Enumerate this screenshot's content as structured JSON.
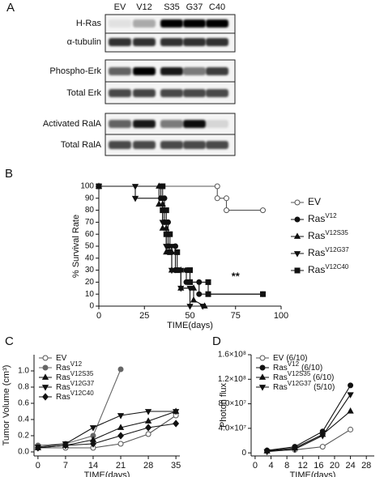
{
  "blot": {
    "panel": "A",
    "lanes": [
      "EV",
      "V12",
      "S35",
      "G37",
      "C40"
    ],
    "rows": [
      "H-Ras",
      "α-tubulin",
      "Phospho-Erk",
      "Total Erk",
      "Activated RalA",
      "Total RalA"
    ]
  },
  "chart_data": [
    {
      "type": "line",
      "panel": "B",
      "x_label": "TIME(days)",
      "y_label": "% Survival Rate",
      "xlim": [
        0,
        100
      ],
      "xticks": [
        0,
        25,
        50,
        75,
        100
      ],
      "ylim": [
        0,
        100
      ],
      "yticks": [
        0,
        10,
        20,
        30,
        40,
        50,
        60,
        70,
        80,
        90,
        100
      ],
      "legend": "right",
      "annotation": "**",
      "series": [
        {
          "name": "EV",
          "color": "#555555",
          "marker": "circle-open",
          "x": [
            0,
            65,
            65,
            70,
            70,
            90
          ],
          "values": [
            100,
            100,
            90,
            90,
            80,
            80
          ]
        },
        {
          "name": "Ras",
          "name_sup": "V12",
          "color": "#111111",
          "marker": "circle",
          "x": [
            0,
            34,
            34,
            36,
            36,
            38,
            38,
            42,
            42,
            48,
            48,
            55,
            55,
            90
          ],
          "values": [
            100,
            100,
            90,
            90,
            70,
            70,
            50,
            50,
            30,
            30,
            20,
            20,
            10,
            10
          ]
        },
        {
          "name": "Ras",
          "name_sup": "V12S35",
          "color": "#111111",
          "marker": "triangle-up",
          "x": [
            0,
            33,
            33,
            35,
            35,
            37,
            37,
            40,
            40,
            45,
            45,
            52,
            52,
            58
          ],
          "values": [
            100,
            100,
            85,
            85,
            65,
            65,
            45,
            45,
            30,
            30,
            15,
            15,
            5,
            0
          ]
        },
        {
          "name": "Ras",
          "name_sup": "V12G37",
          "color": "#111111",
          "marker": "triangle-down",
          "x": [
            0,
            20,
            20,
            35,
            35,
            37,
            37,
            40,
            40,
            45,
            45,
            50,
            50,
            57
          ],
          "values": [
            100,
            100,
            90,
            90,
            70,
            70,
            50,
            50,
            30,
            30,
            15,
            15,
            0,
            0
          ]
        },
        {
          "name": "Ras",
          "name_sup": "V12C40",
          "color": "#111111",
          "marker": "square",
          "x": [
            0,
            35,
            35,
            37,
            37,
            39,
            39,
            43,
            43,
            50,
            50,
            60,
            60,
            90
          ],
          "values": [
            100,
            100,
            80,
            80,
            60,
            60,
            45,
            45,
            30,
            30,
            20,
            20,
            10,
            10
          ]
        }
      ]
    },
    {
      "type": "line",
      "panel": "C",
      "x_label": "TIME(days)",
      "y_label": "Tumor Volume (cm³)",
      "x": [
        0,
        7,
        14,
        21,
        28,
        35
      ],
      "xlim": [
        -1,
        36
      ],
      "xticks": [
        0,
        7,
        14,
        21,
        28,
        35
      ],
      "ylim": [
        -0.05,
        1.2
      ],
      "yticks": [
        {
          "value": 0,
          "label": "0.0"
        },
        0.2,
        0.4,
        0.6,
        0.8,
        {
          "value": 1,
          "label": "1.0"
        }
      ],
      "legend": "upper left",
      "series": [
        {
          "name": "EV",
          "color": "#555555",
          "marker": "circle-open",
          "values": [
            0.05,
            0.05,
            0.05,
            0.1,
            0.22,
            0.45
          ]
        },
        {
          "name": "Ras",
          "name_sup": "V12",
          "color": "#666666",
          "marker": "circle",
          "values": [
            0.08,
            0.1,
            0.2,
            1.02,
            null,
            null
          ]
        },
        {
          "name": "Ras",
          "name_sup": "V12S35",
          "color": "#111111",
          "marker": "triangle-up",
          "values": [
            0.05,
            0.08,
            0.15,
            0.3,
            0.38,
            0.5
          ]
        },
        {
          "name": "Ras",
          "name_sup": "V12G37",
          "color": "#111111",
          "marker": "triangle-down",
          "values": [
            0.06,
            0.1,
            0.3,
            0.45,
            0.5,
            0.5
          ]
        },
        {
          "name": "Ras",
          "name_sup": "V12C40",
          "color": "#111111",
          "marker": "diamond",
          "values": [
            0.05,
            0.08,
            0.1,
            0.2,
            0.3,
            0.35
          ]
        }
      ]
    },
    {
      "type": "line",
      "panel": "D",
      "x_label": "TIME(days)",
      "y_label": "Photon flux",
      "x": [
        3,
        10,
        17,
        24
      ],
      "xlim": [
        -1,
        30
      ],
      "xticks": [
        0,
        4,
        8,
        12,
        16,
        20,
        24,
        28
      ],
      "ylim": [
        -5000000,
        160000000
      ],
      "yticks": [
        0,
        {
          "value": 40000000,
          "label": "4.0×10⁷"
        },
        {
          "value": 80000000,
          "label": "8.0×10⁷"
        },
        {
          "value": 120000000,
          "label": "1.2×10⁸"
        },
        {
          "value": 160000000,
          "label": "1.6×10⁸"
        }
      ],
      "legend": "upper left",
      "series": [
        {
          "name": "EV",
          "name_suffix": "(6/10)",
          "color": "#555555",
          "marker": "circle-open",
          "values": [
            3000000,
            5000000,
            10000000,
            38000000
          ]
        },
        {
          "name": "Ras",
          "name_sup": "V12",
          "name_suffix": "(6/10)",
          "color": "#111111",
          "marker": "circle",
          "values": [
            4000000,
            10000000,
            35000000,
            110000000
          ]
        },
        {
          "name": "Ras",
          "name_sup": "V12S35",
          "name_suffix": "(6/10)",
          "color": "#111111",
          "marker": "triangle-up",
          "values": [
            3000000,
            8000000,
            30000000,
            68000000
          ]
        },
        {
          "name": "Ras",
          "name_sup": "V12G37",
          "name_suffix": "(5/10)",
          "color": "#111111",
          "marker": "triangle-down",
          "values": [
            2000000,
            6000000,
            28000000,
            95000000
          ]
        }
      ]
    }
  ]
}
